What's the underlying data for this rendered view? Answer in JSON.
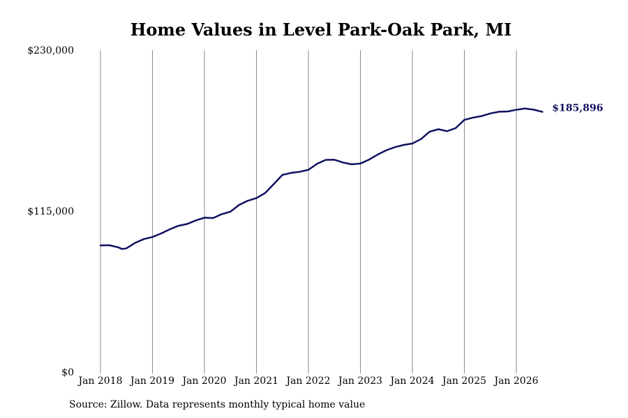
{
  "chart_data": {
    "type": "line",
    "title": "Home Values in Level Park-Oak Park, MI",
    "xlabel": "",
    "ylabel": "",
    "ylim": [
      0,
      230000
    ],
    "y_ticks": [
      "$0",
      "$115,000",
      "$230,000"
    ],
    "y_tick_values": [
      0,
      115000,
      230000
    ],
    "x_ticks": [
      "Jan 2018",
      "Jan 2019",
      "Jan 2020",
      "Jan 2021",
      "Jan 2022",
      "Jan 2023",
      "Jan 2024",
      "Jan 2025",
      "Jan 2026"
    ],
    "x_tick_dates": [
      "2018-01",
      "2019-01",
      "2020-01",
      "2021-01",
      "2022-01",
      "2023-01",
      "2024-01",
      "2025-01",
      "2026-01"
    ],
    "grid": "vertical",
    "series": [
      {
        "color": "#101060",
        "x": [
          "2018-01",
          "2018-03",
          "2018-05",
          "2018-06",
          "2018-07",
          "2018-09",
          "2018-11",
          "2019-01",
          "2019-03",
          "2019-05",
          "2019-07",
          "2019-09",
          "2019-11",
          "2020-01",
          "2020-03",
          "2020-05",
          "2020-07",
          "2020-09",
          "2020-11",
          "2021-01",
          "2021-03",
          "2021-05",
          "2021-07",
          "2021-09",
          "2021-11",
          "2022-01",
          "2022-03",
          "2022-05",
          "2022-07",
          "2022-09",
          "2022-11",
          "2023-01",
          "2023-03",
          "2023-05",
          "2023-07",
          "2023-09",
          "2023-11",
          "2024-01",
          "2024-03",
          "2024-05",
          "2024-07",
          "2024-09",
          "2024-11",
          "2025-01",
          "2025-03",
          "2025-05",
          "2025-07",
          "2025-09",
          "2025-11",
          "2026-01",
          "2026-03",
          "2026-05",
          "2026-07"
        ],
        "values": [
          90500,
          90600,
          89200,
          87900,
          88400,
          92300,
          95000,
          96500,
          99000,
          102000,
          104500,
          105800,
          108300,
          110300,
          110000,
          112800,
          114600,
          119400,
          122400,
          124300,
          127900,
          134300,
          140900,
          142300,
          143100,
          144500,
          148800,
          151600,
          151700,
          149700,
          148400,
          149000,
          151800,
          155400,
          158500,
          160700,
          162300,
          163300,
          166500,
          171800,
          173500,
          172100,
          174300,
          180200,
          181800,
          182900,
          184800,
          186000,
          186200,
          187400,
          188300,
          187500,
          185896
        ]
      }
    ],
    "end_label": "$185,896",
    "source": "Source: Zillow. Data represents monthly typical home value"
  }
}
